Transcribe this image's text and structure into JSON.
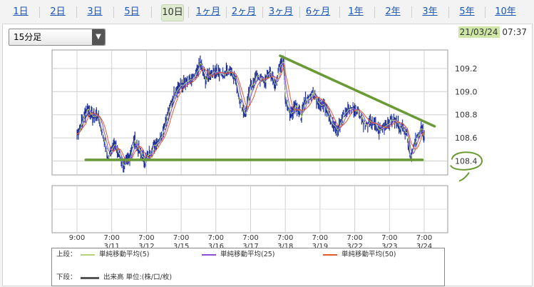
{
  "tabs": [
    {
      "label": "1日"
    },
    {
      "label": "2日"
    },
    {
      "label": "3日"
    },
    {
      "label": "5日"
    },
    {
      "label": "10日",
      "active": true
    },
    {
      "label": "1ヶ月"
    },
    {
      "label": "2ヶ月"
    },
    {
      "label": "3ヶ月"
    },
    {
      "label": "6ヶ月"
    },
    {
      "label": "1年"
    },
    {
      "label": "2年"
    },
    {
      "label": "3年"
    },
    {
      "label": "5年"
    },
    {
      "label": "10年"
    }
  ],
  "interval_select": {
    "value": "15分足"
  },
  "timestamp": {
    "date": "21/03/24",
    "time": "07:37"
  },
  "chart_data": {
    "type": "line",
    "ylim": [
      108.28,
      109.36
    ],
    "yticks": [
      "109.2",
      "109.0",
      "108.8",
      "108.6",
      "108.4"
    ],
    "x_labels": [
      {
        "time": "9:00",
        "date": ""
      },
      {
        "time": "7:00",
        "date": "3/11"
      },
      {
        "time": "7:00",
        "date": "3/12"
      },
      {
        "time": "7:00",
        "date": "3/15"
      },
      {
        "time": "7:00",
        "date": "3/16"
      },
      {
        "time": "7:00",
        "date": "3/17"
      },
      {
        "time": "7:00",
        "date": "3/18"
      },
      {
        "time": "7:00",
        "date": "3/19"
      },
      {
        "time": "7:00",
        "date": "3/22"
      },
      {
        "time": "7:00",
        "date": "3/23"
      },
      {
        "time": "7:00",
        "date": "3/24"
      }
    ],
    "price_path": [
      [
        0,
        108.63
      ],
      [
        0.15,
        108.74
      ],
      [
        0.3,
        108.86
      ],
      [
        0.45,
        108.78
      ],
      [
        0.6,
        108.8
      ],
      [
        0.75,
        108.62
      ],
      [
        0.9,
        108.42
      ],
      [
        1.05,
        108.56
      ],
      [
        1.2,
        108.46
      ],
      [
        1.35,
        108.36
      ],
      [
        1.5,
        108.42
      ],
      [
        1.65,
        108.58
      ],
      [
        1.8,
        108.48
      ],
      [
        1.95,
        108.4
      ],
      [
        2.1,
        108.47
      ],
      [
        2.25,
        108.55
      ],
      [
        2.4,
        108.6
      ],
      [
        2.55,
        108.74
      ],
      [
        2.7,
        108.88
      ],
      [
        2.85,
        109.02
      ],
      [
        3.0,
        109.05
      ],
      [
        3.2,
        109.08
      ],
      [
        3.4,
        109.12
      ],
      [
        3.55,
        109.25
      ],
      [
        3.7,
        109.1
      ],
      [
        3.85,
        109.16
      ],
      [
        4.0,
        109.18
      ],
      [
        4.2,
        109.14
      ],
      [
        4.4,
        109.2
      ],
      [
        4.55,
        109.12
      ],
      [
        4.7,
        108.92
      ],
      [
        4.85,
        108.8
      ],
      [
        5.0,
        109.05
      ],
      [
        5.2,
        109.14
      ],
      [
        5.4,
        109.08
      ],
      [
        5.55,
        109.18
      ],
      [
        5.7,
        109.05
      ],
      [
        5.85,
        109.22
      ],
      [
        5.95,
        109.28
      ],
      [
        6.0,
        108.95
      ],
      [
        6.15,
        108.8
      ],
      [
        6.3,
        108.9
      ],
      [
        6.45,
        108.78
      ],
      [
        6.6,
        108.94
      ],
      [
        6.8,
        108.98
      ],
      [
        7.0,
        108.9
      ],
      [
        7.2,
        108.86
      ],
      [
        7.35,
        108.72
      ],
      [
        7.5,
        108.66
      ],
      [
        7.7,
        108.82
      ],
      [
        7.9,
        108.86
      ],
      [
        8.1,
        108.84
      ],
      [
        8.3,
        108.7
      ],
      [
        8.5,
        108.74
      ],
      [
        8.7,
        108.66
      ],
      [
        8.9,
        108.72
      ],
      [
        9.1,
        108.76
      ],
      [
        9.3,
        108.7
      ],
      [
        9.5,
        108.66
      ],
      [
        9.6,
        108.44
      ],
      [
        9.75,
        108.56
      ],
      [
        9.9,
        108.68
      ],
      [
        10.0,
        108.62
      ]
    ],
    "trendlines": [
      {
        "name": "resistance",
        "points": [
          [
            5.85,
            109.31
          ],
          [
            10.3,
            108.7
          ]
        ],
        "color": "#6a9a36"
      },
      {
        "name": "support",
        "points": [
          [
            0.25,
            108.41
          ],
          [
            9.95,
            108.41
          ]
        ],
        "color": "#6a9a36"
      }
    ],
    "annotation": {
      "label": "108.4",
      "value": 108.4
    },
    "legend": {
      "upper_label": "上段：",
      "lower_label": "下段：",
      "items": [
        {
          "name": "単純移動平均(5)",
          "color": "#b8d27a"
        },
        {
          "name": "単純移動平均(25)",
          "color": "#8a4fd6"
        },
        {
          "name": "単純移動平均(50)",
          "color": "#e25a2a"
        }
      ],
      "volume": {
        "name": "出来高 単位:(株/口/枚)",
        "color": "#555555"
      }
    }
  }
}
